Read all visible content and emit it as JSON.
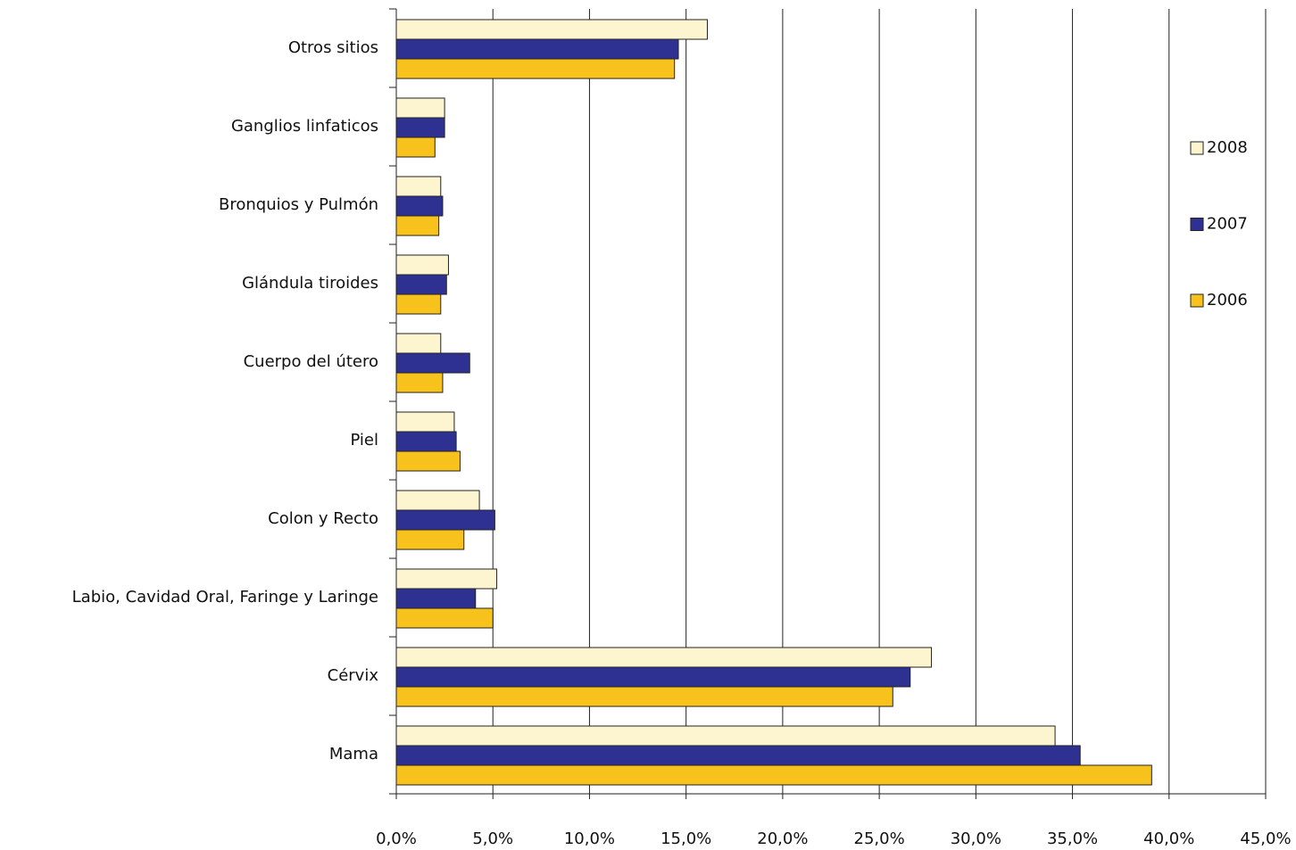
{
  "chart_data": {
    "type": "hbar",
    "categories": [
      "Otros sitios",
      "Ganglios linfaticos",
      "Bronquios y Pulmón",
      "Glándula tiroides",
      "Cuerpo del útero",
      "Piel",
      "Colon y Recto",
      "Labio, Cavidad Oral, Faringe y Laringe",
      "Cérvix",
      "Mama"
    ],
    "series": [
      {
        "name": "2008",
        "color": "#fdf5d0",
        "values": [
          16.1,
          2.5,
          2.3,
          2.7,
          2.3,
          3.0,
          4.3,
          5.2,
          27.7,
          34.1
        ]
      },
      {
        "name": "2007",
        "color": "#2e3192",
        "values": [
          14.6,
          2.5,
          2.4,
          2.6,
          3.8,
          3.1,
          5.1,
          4.1,
          26.6,
          35.4
        ]
      },
      {
        "name": "2006",
        "color": "#f8c21c",
        "values": [
          14.4,
          2.0,
          2.2,
          2.3,
          2.4,
          3.3,
          3.5,
          5.0,
          25.7,
          39.1
        ]
      }
    ],
    "xlim": [
      0,
      45
    ],
    "xticks": [
      {
        "value": 0,
        "label": "0,0%"
      },
      {
        "value": 5,
        "label": "5,0%"
      },
      {
        "value": 10,
        "label": "10,0%"
      },
      {
        "value": 15,
        "label": "15,0%"
      },
      {
        "value": 20,
        "label": "20,0%"
      },
      {
        "value": 25,
        "label": "25,0%"
      },
      {
        "value": 30,
        "label": "30,0%"
      },
      {
        "value": 35,
        "label": "35,0%"
      },
      {
        "value": 40,
        "label": "40,0%"
      },
      {
        "value": 45,
        "label": "45,0%"
      }
    ],
    "grid": true,
    "legend": "right"
  }
}
